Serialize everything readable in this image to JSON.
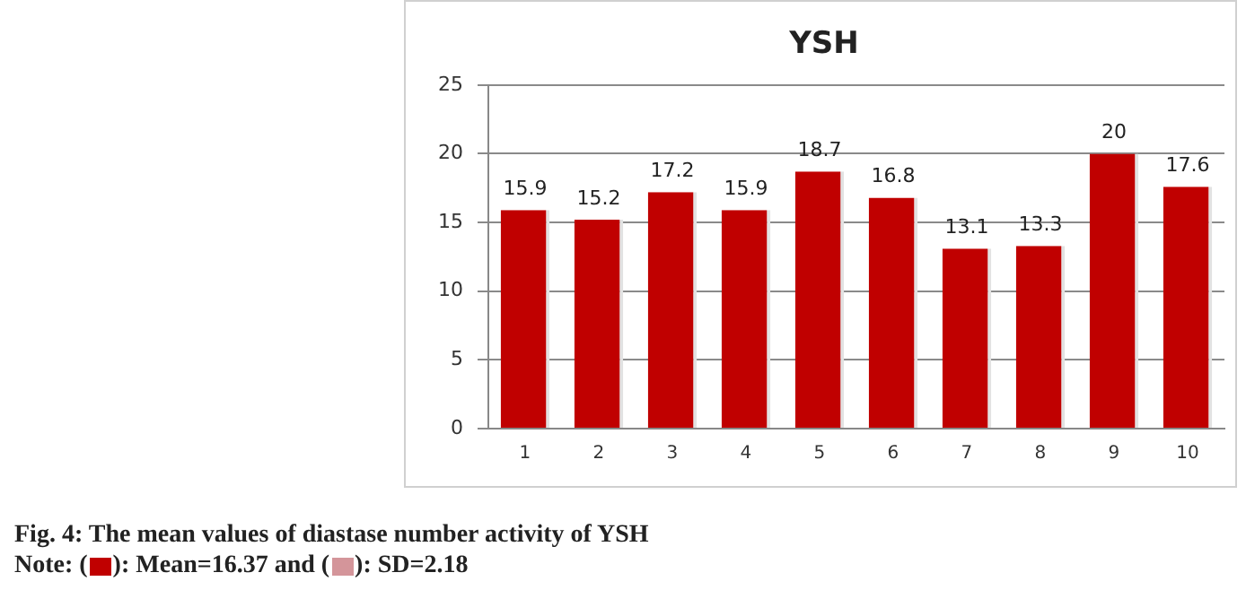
{
  "chart_data": {
    "type": "bar",
    "title": "YSH",
    "categories": [
      "1",
      "2",
      "3",
      "4",
      "5",
      "6",
      "7",
      "8",
      "9",
      "10"
    ],
    "values": [
      15.9,
      15.2,
      17.2,
      15.9,
      18.7,
      16.8,
      13.1,
      13.3,
      20,
      17.6
    ],
    "color": "#c00000",
    "ylim": [
      0,
      25
    ],
    "yticks": [
      0,
      5,
      10,
      15,
      20,
      25
    ],
    "grid": "y",
    "data_labels": true,
    "annotations": [
      "Fig. 4: The mean values of diastase number activity of YSH",
      "Note: (    ): Mean=16.37 and (    ): SD=2.18"
    ]
  }
}
